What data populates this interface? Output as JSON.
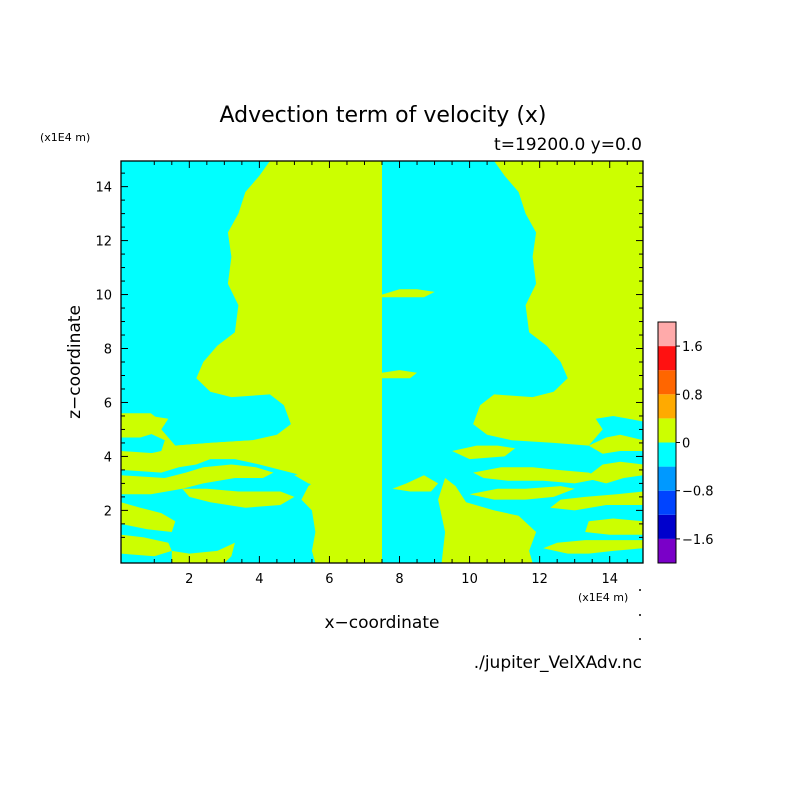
{
  "chart_data": {
    "type": "heatmap",
    "title": "Advection term of velocity (x)",
    "subtitle": "t=19200.0 y=0.0",
    "xlabel": "x−coordinate",
    "ylabel": "z−coordinate",
    "x_unit": "(x1E4 m)",
    "z_unit": "(x1E4 m)",
    "xlim": [
      0.05,
      14.95
    ],
    "ylim": [
      0.05,
      14.95
    ],
    "x_ticks": [
      2,
      4,
      6,
      8,
      10,
      12,
      14
    ],
    "y_ticks": [
      2,
      4,
      6,
      8,
      10,
      12,
      14
    ],
    "background_color": "#ccff00",
    "negative_color": "#00ffff",
    "colorbar": {
      "levels": [
        -2.0,
        -1.6,
        -1.2,
        -0.8,
        -0.4,
        0,
        0.4,
        0.8,
        1.2,
        1.6,
        2.0
      ],
      "colors": [
        "#7a00c8",
        "#0000cc",
        "#0044ff",
        "#0099ff",
        "#00ffff",
        "#ccff00",
        "#ffaa00",
        "#ff6600",
        "#ff1111",
        "#ffaaaa"
      ],
      "tick_labels": [
        "−1.6",
        "−0.8",
        "0",
        "0.8",
        "1.6"
      ],
      "tick_values": [
        -1.6,
        -0.8,
        0,
        0.8,
        1.6
      ]
    },
    "negative_regions": [
      [
        [
          0.05,
          14.95
        ],
        [
          4.3,
          14.95
        ],
        [
          4.0,
          14.4
        ],
        [
          3.6,
          13.8
        ],
        [
          3.4,
          13.0
        ],
        [
          3.1,
          12.3
        ],
        [
          3.2,
          11.4
        ],
        [
          3.1,
          10.4
        ],
        [
          3.4,
          9.6
        ],
        [
          3.3,
          8.6
        ],
        [
          2.8,
          8.1
        ],
        [
          2.4,
          7.5
        ],
        [
          2.2,
          6.9
        ],
        [
          2.6,
          6.4
        ],
        [
          3.2,
          6.2
        ],
        [
          4.3,
          6.3
        ],
        [
          4.7,
          5.9
        ],
        [
          4.9,
          5.2
        ],
        [
          4.5,
          4.8
        ],
        [
          3.8,
          4.6
        ],
        [
          2.6,
          4.5
        ],
        [
          1.6,
          4.4
        ],
        [
          1.2,
          5.0
        ],
        [
          1.4,
          5.4
        ],
        [
          0.9,
          5.5
        ],
        [
          0.05,
          5.3
        ]
      ],
      [
        [
          0.05,
          5.0
        ],
        [
          0.8,
          4.9
        ],
        [
          1.3,
          4.6
        ],
        [
          1.2,
          4.2
        ],
        [
          0.5,
          4.0
        ],
        [
          0.05,
          3.9
        ]
      ],
      [
        [
          0.05,
          3.5
        ],
        [
          1.2,
          3.4
        ],
        [
          1.7,
          3.6
        ],
        [
          2.2,
          3.7
        ],
        [
          2.6,
          3.9
        ],
        [
          3.3,
          3.9
        ],
        [
          4.0,
          3.7
        ],
        [
          4.6,
          3.5
        ],
        [
          5.2,
          3.3
        ],
        [
          5.7,
          3.2
        ],
        [
          5.4,
          2.9
        ],
        [
          5.2,
          2.4
        ],
        [
          5.5,
          2.0
        ],
        [
          5.6,
          1.2
        ],
        [
          5.5,
          0.5
        ],
        [
          5.6,
          0.05
        ],
        [
          0.05,
          0.05
        ]
      ],
      [
        [
          1.5,
          0.05
        ],
        [
          1.5,
          0.5
        ],
        [
          1.3,
          1.1
        ],
        [
          1.0,
          1.7
        ],
        [
          0.5,
          1.9
        ],
        [
          0.05,
          2.0
        ]
      ],
      [
        [
          7.5,
          14.95
        ],
        [
          10.7,
          14.95
        ],
        [
          11.0,
          14.4
        ],
        [
          11.4,
          13.8
        ],
        [
          11.6,
          13.0
        ],
        [
          11.9,
          12.3
        ],
        [
          11.8,
          11.4
        ],
        [
          11.9,
          10.4
        ],
        [
          11.6,
          9.6
        ],
        [
          11.7,
          8.6
        ],
        [
          12.2,
          8.1
        ],
        [
          12.6,
          7.5
        ],
        [
          12.8,
          6.9
        ],
        [
          12.4,
          6.4
        ],
        [
          11.8,
          6.2
        ],
        [
          10.7,
          6.3
        ],
        [
          10.3,
          5.9
        ],
        [
          10.1,
          5.2
        ],
        [
          10.5,
          4.8
        ],
        [
          11.2,
          4.6
        ],
        [
          12.4,
          4.5
        ],
        [
          13.4,
          4.4
        ],
        [
          13.8,
          5.0
        ],
        [
          13.6,
          5.4
        ],
        [
          14.1,
          5.5
        ],
        [
          14.95,
          5.3
        ],
        [
          14.95,
          0.05
        ],
        [
          11.8,
          0.05
        ],
        [
          11.7,
          0.5
        ],
        [
          11.9,
          1.2
        ],
        [
          11.4,
          1.8
        ],
        [
          10.7,
          2.0
        ],
        [
          9.9,
          2.3
        ],
        [
          9.6,
          2.9
        ],
        [
          9.3,
          3.2
        ],
        [
          9.1,
          2.4
        ],
        [
          9.3,
          1.2
        ],
        [
          9.2,
          0.05
        ],
        [
          7.5,
          0.05
        ]
      ]
    ],
    "positive_regions": [
      [
        [
          0.05,
          5.6
        ],
        [
          0.9,
          5.6
        ],
        [
          1.3,
          5.2
        ],
        [
          1.1,
          4.9
        ],
        [
          0.6,
          4.7
        ],
        [
          0.05,
          4.7
        ]
      ],
      [
        [
          0.05,
          4.2
        ],
        [
          1.2,
          4.1
        ],
        [
          1.6,
          3.9
        ],
        [
          1.4,
          3.7
        ],
        [
          0.6,
          3.7
        ],
        [
          0.05,
          3.8
        ]
      ],
      [
        [
          1.6,
          4.4
        ],
        [
          2.0,
          4.1
        ],
        [
          2.8,
          4.2
        ],
        [
          3.4,
          4.3
        ],
        [
          3.9,
          4.4
        ],
        [
          4.3,
          4.5
        ],
        [
          3.8,
          4.6
        ],
        [
          2.6,
          4.5
        ]
      ],
      [
        [
          0.05,
          3.3
        ],
        [
          1.3,
          3.2
        ],
        [
          1.9,
          3.4
        ],
        [
          2.4,
          3.6
        ],
        [
          3.2,
          3.7
        ],
        [
          3.9,
          3.6
        ],
        [
          4.4,
          3.4
        ],
        [
          4.1,
          3.2
        ],
        [
          3.3,
          3.2
        ],
        [
          2.4,
          3.0
        ],
        [
          1.8,
          2.8
        ],
        [
          0.9,
          2.6
        ],
        [
          0.05,
          2.6
        ]
      ],
      [
        [
          1.8,
          2.8
        ],
        [
          2.0,
          2.5
        ],
        [
          2.6,
          2.3
        ],
        [
          3.6,
          2.1
        ],
        [
          4.6,
          2.2
        ],
        [
          5.0,
          2.5
        ],
        [
          4.6,
          2.7
        ],
        [
          3.4,
          2.7
        ],
        [
          2.5,
          2.8
        ]
      ],
      [
        [
          0.05,
          2.3
        ],
        [
          0.6,
          2.1
        ],
        [
          1.2,
          1.9
        ],
        [
          1.6,
          1.6
        ],
        [
          1.5,
          1.2
        ],
        [
          0.8,
          1.3
        ],
        [
          0.05,
          1.5
        ]
      ],
      [
        [
          0.05,
          1.1
        ],
        [
          0.7,
          1.0
        ],
        [
          1.4,
          0.8
        ],
        [
          1.5,
          0.5
        ],
        [
          1.0,
          0.3
        ],
        [
          0.05,
          0.4
        ]
      ],
      [
        [
          1.5,
          0.5
        ],
        [
          2.0,
          0.4
        ],
        [
          2.8,
          0.5
        ],
        [
          3.3,
          0.8
        ],
        [
          3.2,
          0.3
        ],
        [
          3.0,
          0.05
        ],
        [
          1.5,
          0.05
        ]
      ],
      [
        [
          5.0,
          3.3
        ],
        [
          5.5,
          3.5
        ],
        [
          6.1,
          3.6
        ],
        [
          6.4,
          3.3
        ],
        [
          6.9,
          3.1
        ],
        [
          7.1,
          2.9
        ],
        [
          6.6,
          2.7
        ],
        [
          6.0,
          2.8
        ],
        [
          5.4,
          3.0
        ]
      ],
      [
        [
          6.0,
          10.2
        ],
        [
          6.5,
          10.3
        ],
        [
          7.0,
          10.3
        ],
        [
          7.5,
          10.2
        ],
        [
          7.5,
          10.0
        ],
        [
          7.0,
          9.8
        ],
        [
          6.5,
          9.9
        ],
        [
          6.0,
          9.9
        ]
      ],
      [
        [
          6.5,
          7.2
        ],
        [
          7.0,
          7.3
        ],
        [
          7.5,
          7.2
        ],
        [
          7.5,
          7.0
        ],
        [
          7.0,
          6.9
        ],
        [
          6.6,
          6.9
        ]
      ],
      [
        [
          7.5,
          10.0
        ],
        [
          8.0,
          10.2
        ],
        [
          8.5,
          10.2
        ],
        [
          9.0,
          10.1
        ],
        [
          8.7,
          9.9
        ],
        [
          8.0,
          9.9
        ],
        [
          7.5,
          9.9
        ]
      ],
      [
        [
          7.5,
          7.1
        ],
        [
          8.0,
          7.2
        ],
        [
          8.5,
          7.1
        ],
        [
          8.3,
          6.9
        ],
        [
          7.8,
          6.9
        ],
        [
          7.5,
          6.9
        ]
      ],
      [
        [
          7.8,
          2.8
        ],
        [
          8.2,
          3.0
        ],
        [
          8.7,
          3.3
        ],
        [
          9.1,
          3.0
        ],
        [
          8.9,
          2.7
        ],
        [
          8.3,
          2.7
        ]
      ],
      [
        [
          9.5,
          4.2
        ],
        [
          10.2,
          4.4
        ],
        [
          10.8,
          4.4
        ],
        [
          11.3,
          4.3
        ],
        [
          11.0,
          4.0
        ],
        [
          10.0,
          3.9
        ]
      ],
      [
        [
          10.1,
          3.4
        ],
        [
          10.9,
          3.6
        ],
        [
          11.8,
          3.6
        ],
        [
          12.5,
          3.5
        ],
        [
          13.4,
          3.4
        ],
        [
          13.8,
          3.2
        ],
        [
          13.0,
          3.0
        ],
        [
          12.1,
          3.1
        ],
        [
          11.1,
          3.1
        ],
        [
          10.4,
          3.2
        ]
      ],
      [
        [
          10.0,
          2.6
        ],
        [
          10.7,
          2.4
        ],
        [
          11.6,
          2.4
        ],
        [
          12.4,
          2.5
        ],
        [
          13.0,
          2.8
        ],
        [
          12.6,
          2.9
        ],
        [
          11.6,
          2.8
        ],
        [
          10.8,
          2.8
        ]
      ],
      [
        [
          13.4,
          4.4
        ],
        [
          13.8,
          4.1
        ],
        [
          14.3,
          4.2
        ],
        [
          14.95,
          4.2
        ],
        [
          14.95,
          4.6
        ],
        [
          14.3,
          4.8
        ],
        [
          13.9,
          4.7
        ]
      ],
      [
        [
          13.3,
          3.2
        ],
        [
          13.9,
          3.0
        ],
        [
          14.4,
          3.2
        ],
        [
          14.95,
          3.3
        ],
        [
          14.95,
          3.7
        ],
        [
          14.3,
          3.8
        ],
        [
          13.8,
          3.7
        ]
      ],
      [
        [
          12.3,
          2.1
        ],
        [
          13.0,
          2.0
        ],
        [
          13.9,
          2.2
        ],
        [
          14.95,
          2.2
        ],
        [
          14.95,
          2.7
        ],
        [
          14.2,
          2.6
        ],
        [
          13.3,
          2.5
        ],
        [
          12.6,
          2.4
        ]
      ],
      [
        [
          13.3,
          1.2
        ],
        [
          14.0,
          1.1
        ],
        [
          14.95,
          1.1
        ],
        [
          14.95,
          1.6
        ],
        [
          14.1,
          1.7
        ],
        [
          13.4,
          1.6
        ]
      ],
      [
        [
          12.1,
          0.6
        ],
        [
          12.8,
          0.4
        ],
        [
          13.4,
          0.4
        ],
        [
          14.1,
          0.5
        ],
        [
          14.95,
          0.6
        ],
        [
          14.95,
          0.9
        ],
        [
          14.1,
          0.9
        ],
        [
          13.3,
          0.9
        ],
        [
          12.5,
          0.8
        ]
      ]
    ]
  },
  "footer": {
    "filename": "./jupiter_VelXAdv.nc"
  }
}
